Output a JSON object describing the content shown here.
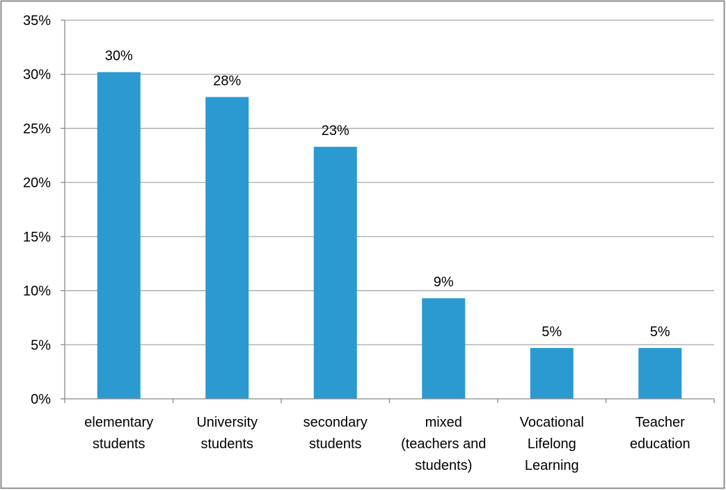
{
  "chart_data": {
    "type": "bar",
    "categories": [
      [
        "elementary",
        "students"
      ],
      [
        "University",
        "students"
      ],
      [
        "secondary",
        "students"
      ],
      [
        "mixed",
        "(teachers and",
        "students)"
      ],
      [
        "Vocational",
        "Lifelong",
        "Learning"
      ],
      [
        "Teacher",
        "education"
      ]
    ],
    "values": [
      30.2,
      27.9,
      23.3,
      9.3,
      4.7,
      4.7
    ],
    "data_labels": [
      "30%",
      "28%",
      "23%",
      "9%",
      "5%",
      "5%"
    ],
    "y_ticks": [
      0,
      5,
      10,
      15,
      20,
      25,
      30,
      35
    ],
    "y_tick_labels": [
      "0%",
      "5%",
      "10%",
      "15%",
      "20%",
      "25%",
      "30%",
      "35%"
    ],
    "ylim": [
      0,
      35
    ],
    "title": "",
    "xlabel": "",
    "ylabel": "",
    "grid": true,
    "legend": "none",
    "bar_color": "#2b9ad1",
    "grid_color": "#a6a6a6",
    "axis_color": "#888888",
    "frame_color": "#8c8c8c"
  }
}
